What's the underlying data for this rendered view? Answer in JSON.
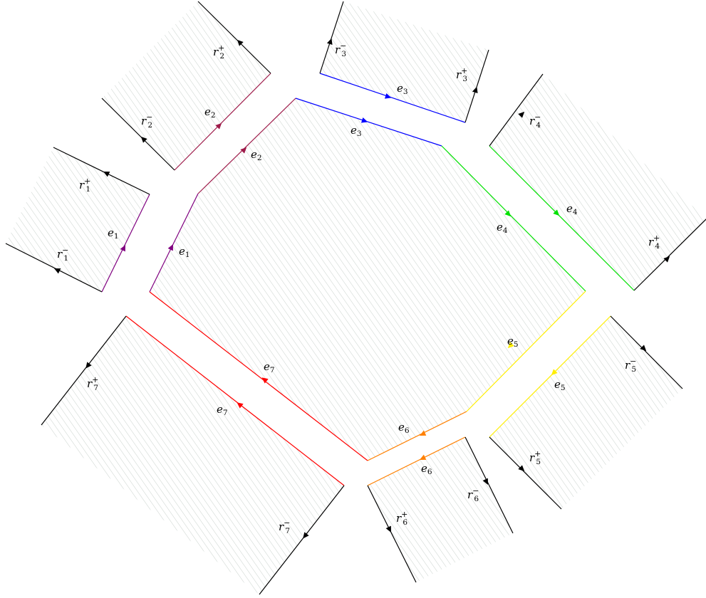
{
  "diagram": {
    "colors": {
      "e1": "#800080",
      "e2": "#9e1b4a",
      "e3": "#0000ff",
      "e4": "#00e000",
      "e5": "#ffee00",
      "e6": "#ff8000",
      "e7": "#ff0000",
      "ray": "#000000",
      "hatch": "#c9d1cc"
    },
    "labels": {
      "e1": "e",
      "e1_idx": "1",
      "e2": "e",
      "e2_idx": "2",
      "e3": "e",
      "e3_idx": "3",
      "e4": "e",
      "e4_idx": "4",
      "e5": "e",
      "e5_idx": "5",
      "e6": "e",
      "e6_idx": "6",
      "e7": "e",
      "e7_idx": "7",
      "r": "r",
      "idx1": "1",
      "idx2": "2",
      "idx3": "3",
      "idx4": "4",
      "idx5": "5",
      "idx6": "6",
      "idx7": "7",
      "plus": "+",
      "minus": "−"
    }
  }
}
